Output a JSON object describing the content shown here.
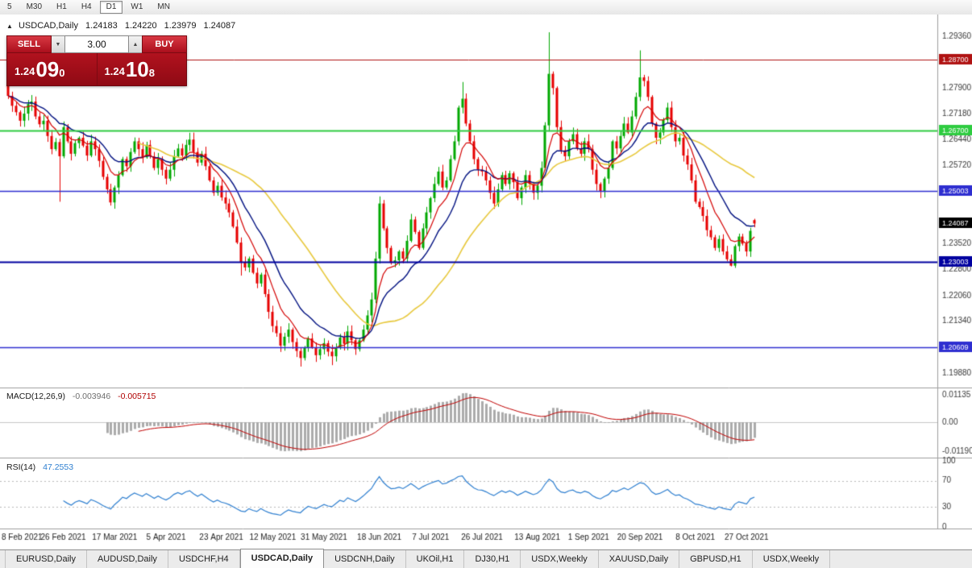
{
  "toolbar": {
    "timeframes": [
      "5",
      "M30",
      "H1",
      "H4",
      "D1",
      "W1",
      "MN"
    ],
    "active": "D1"
  },
  "chart_header": {
    "collapse_icon": "▲",
    "symbol_period": "USDCAD,Daily",
    "open": "1.24183",
    "high": "1.24220",
    "low": "1.23979",
    "close": "1.24087"
  },
  "trade_panel": {
    "sell_label": "SELL",
    "buy_label": "BUY",
    "volume": "3.00",
    "volume_down_icon": "▼",
    "volume_up_icon": "▲",
    "sell_price": {
      "prefix": "1.24",
      "digits": "09",
      "sup": "0"
    },
    "buy_price": {
      "prefix": "1.24",
      "digits": "10",
      "sup": "8"
    }
  },
  "macd": {
    "label": "MACD(12,26,9)",
    "main_value": "-0.003946",
    "signal_value": "-0.005715",
    "axis_labels": [
      "0.01135",
      "0.00",
      "-0.01190"
    ]
  },
  "rsi": {
    "label": "RSI(14)",
    "value": "47.2553",
    "axis_labels": [
      "100",
      "70",
      "30",
      "0"
    ],
    "levels": [
      70,
      30
    ]
  },
  "tabs": {
    "items": [
      {
        "label": "EURUSD,Daily"
      },
      {
        "label": "AUDUSD,Daily"
      },
      {
        "label": "USDCHF,H4"
      },
      {
        "label": "USDCAD,Daily"
      },
      {
        "label": "USDCNH,Daily"
      },
      {
        "label": "UKOil,H1"
      },
      {
        "label": "DJ30,H1"
      },
      {
        "label": "USDX,Weekly"
      },
      {
        "label": "XAUUSD,Daily"
      },
      {
        "label": "GBPUSD,H1"
      },
      {
        "label": "USDX,Weekly"
      }
    ],
    "active_index": 3
  },
  "chart_data": {
    "type": "candlestick",
    "symbol": "USDCAD",
    "timeframe": "Daily",
    "last_candle": {
      "open": 1.24183,
      "high": 1.2422,
      "low": 1.23979,
      "close": 1.24087
    },
    "price_range": {
      "top": 1.2997,
      "bottom": 1.1947
    },
    "price_axis_labels": [
      "1.29360",
      "1.28620",
      "1.27900",
      "1.27180",
      "1.26440",
      "1.25720",
      "1.25000",
      "1.24260",
      "1.23520",
      "1.22800",
      "1.22060",
      "1.21340",
      "1.20620",
      "1.19880"
    ],
    "x_axis": {
      "labels": [
        "8 Feb 2021",
        "26 Feb 2021",
        "17 Mar 2021",
        "5 Apr 2021",
        "23 Apr 2021",
        "12 May 2021",
        "31 May 2021",
        "18 Jun 2021",
        "7 Jul 2021",
        "26 Jul 2021",
        "13 Aug 2021",
        "1 Sep 2021",
        "20 Sep 2021",
        "8 Oct 2021",
        "27 Oct 2021"
      ],
      "indices": [
        0,
        14,
        27,
        40,
        54,
        67,
        80,
        94,
        107,
        120,
        134,
        147,
        160,
        174,
        187
      ]
    },
    "lines": [
      {
        "price": 1.287,
        "badge": "1.28700",
        "color": "#b01212",
        "width": 1
      },
      {
        "price": 1.267,
        "badge": "1.26700",
        "color": "#2ecc40",
        "width": 2
      },
      {
        "price": 1.25003,
        "badge": "1.25003",
        "color": "#2e2ed0",
        "width": 1.5
      },
      {
        "price": 1.23003,
        "badge": "1.23003",
        "color": "#0000a0",
        "width": 2
      },
      {
        "price": 1.20609,
        "badge": "1.20609",
        "color": "#2e2ed0",
        "width": 1.5
      }
    ],
    "current_price": {
      "value": 1.24087,
      "label": "1.24087",
      "color": "#000000"
    },
    "colors": {
      "bull": "#00a800",
      "bear": "#e60000",
      "ma_fast": "#d40000",
      "ma_mid": "#001080",
      "ma_slow": "#e8c93e",
      "macd_hist": "#ababab",
      "macd_signal": "#c00000",
      "rsi_line": "#2e7fd0",
      "axis_text": "#3a3a3a",
      "date_text": "#1c1c1c"
    },
    "moving_averages": [
      {
        "name": "fast",
        "period": 8,
        "method": "ema"
      },
      {
        "name": "mid",
        "period": 16,
        "method": "ema"
      },
      {
        "name": "slow",
        "period": 34,
        "method": "sma"
      }
    ],
    "macd_params": [
      12,
      26,
      9
    ],
    "rsi_period": 14,
    "first_open": 1.28,
    "closes": [
      1.2768,
      1.274,
      1.2722,
      1.2698,
      1.2718,
      1.2745,
      1.2752,
      1.271,
      1.2688,
      1.2698,
      1.2655,
      1.2618,
      1.2638,
      1.2598,
      1.268,
      1.264,
      1.2605,
      1.2635,
      1.265,
      1.2628,
      1.26,
      1.264,
      1.2618,
      1.2585,
      1.254,
      1.2505,
      1.2468,
      1.251,
      1.2545,
      1.259,
      1.257,
      1.261,
      1.264,
      1.2618,
      1.2595,
      1.263,
      1.2598,
      1.2565,
      1.259,
      1.256,
      1.2535,
      1.256,
      1.2598,
      1.262,
      1.26,
      1.263,
      1.2645,
      1.261,
      1.258,
      1.2605,
      1.257,
      1.253,
      1.2495,
      1.2515,
      1.2482,
      1.2465,
      1.244,
      1.24,
      1.2355,
      1.23,
      1.2285,
      1.231,
      1.227,
      1.224,
      1.2265,
      1.221,
      1.216,
      1.212,
      1.21,
      1.2065,
      1.209,
      1.211,
      1.2075,
      1.205,
      1.203,
      1.206,
      1.2085,
      1.206,
      1.2038,
      1.2055,
      1.2072,
      1.2048,
      1.2035,
      1.206,
      1.2088,
      1.207,
      1.2105,
      1.208,
      1.2055,
      1.208,
      1.211,
      1.215,
      1.2195,
      1.231,
      1.2465,
      1.2395,
      1.234,
      1.2298,
      1.2305,
      1.233,
      1.231,
      1.236,
      1.242,
      1.2385,
      1.234,
      1.2395,
      1.244,
      1.248,
      1.252,
      1.2555,
      1.251,
      1.253,
      1.259,
      1.264,
      1.2735,
      1.276,
      1.269,
      1.264,
      1.259,
      1.256,
      1.2555,
      1.253,
      1.2495,
      1.2465,
      1.2505,
      1.2545,
      1.252,
      1.255,
      1.2525,
      1.248,
      1.251,
      1.2545,
      1.252,
      1.2495,
      1.2515,
      1.2565,
      1.2685,
      1.283,
      1.279,
      1.268,
      1.2615,
      1.2598,
      1.264,
      1.266,
      1.262,
      1.2605,
      1.264,
      1.2618,
      1.256,
      1.252,
      1.2498,
      1.2535,
      1.2565,
      1.264,
      1.262,
      1.2655,
      1.269,
      1.2665,
      1.271,
      1.2765,
      1.282,
      1.281,
      1.2765,
      1.269,
      1.265,
      1.2665,
      1.27,
      1.2735,
      1.268,
      1.264,
      1.265,
      1.26,
      1.2575,
      1.253,
      1.247,
      1.2455,
      1.243,
      1.239,
      1.237,
      1.234,
      1.2365,
      1.233,
      1.2308,
      1.229,
      1.2345,
      1.2372,
      1.2352,
      1.233,
      1.2388,
      1.24087
    ],
    "wick_overrides": {
      "13": {
        "l": 1.247
      },
      "59": {
        "l": 1.2262
      },
      "74": {
        "l": 1.2006
      },
      "82": {
        "l": 1.201
      },
      "94": {
        "h": 1.2485
      },
      "115": {
        "h": 1.2807
      },
      "137": {
        "h": 1.2947
      },
      "160": {
        "h": 1.2896
      },
      "183": {
        "l": 1.2288
      },
      "189": {
        "o": 1.24183,
        "h": 1.2422,
        "l": 1.23979
      }
    }
  }
}
